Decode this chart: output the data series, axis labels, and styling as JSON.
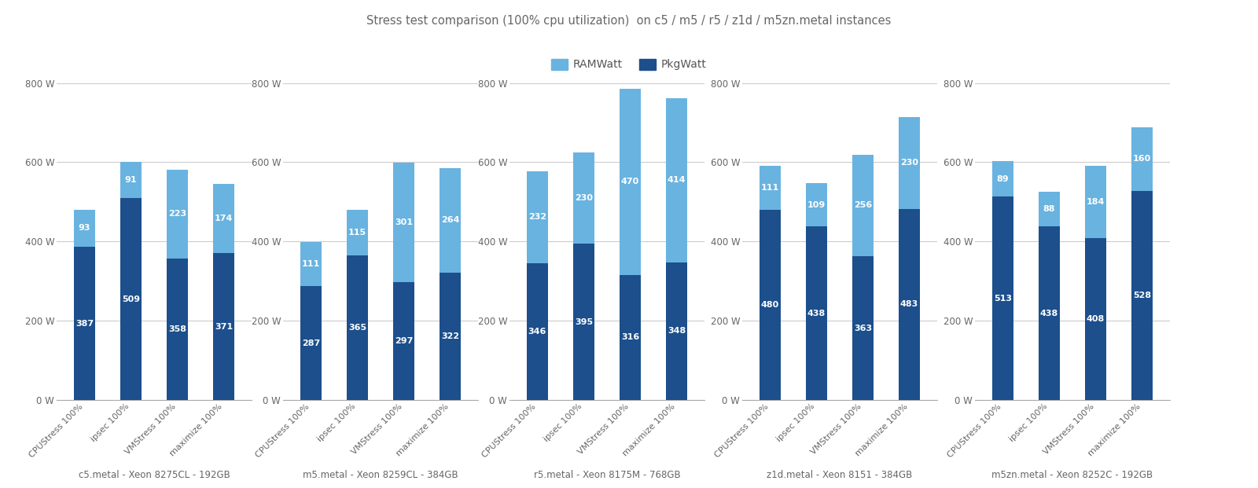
{
  "title": "Stress test comparison (100% cpu utilization)  on c5 / m5 / r5 / z1d / m5zn.metal instances",
  "legend_labels": [
    "RAMWatt",
    "PkgWatt"
  ],
  "ram_color": "#69b3e0",
  "pkg_color": "#1c4f8c",
  "background_color": "#ffffff",
  "ylim": [
    0,
    800
  ],
  "yticks": [
    0,
    200,
    400,
    600,
    800
  ],
  "ytick_labels": [
    "0 W",
    "200 W",
    "400 W",
    "600 W",
    "800 W"
  ],
  "categories": [
    "CPUStress 100%",
    "ipsec 100%",
    "VMStress 100%",
    "maximize 100%"
  ],
  "subplots": [
    {
      "xlabel": "c5.metal - Xeon 8275CL - 192GB",
      "pkg_values": [
        387,
        509,
        358,
        371
      ],
      "ram_values": [
        93,
        91,
        223,
        174
      ]
    },
    {
      "xlabel": "m5.metal - Xeon 8259CL - 384GB",
      "pkg_values": [
        287,
        365,
        297,
        322
      ],
      "ram_values": [
        111,
        115,
        301,
        264
      ]
    },
    {
      "xlabel": "r5.metal - Xeon 8175M - 768GB",
      "pkg_values": [
        346,
        395,
        316,
        348
      ],
      "ram_values": [
        232,
        230,
        470,
        414
      ]
    },
    {
      "xlabel": "z1d.metal - Xeon 8151 - 384GB",
      "pkg_values": [
        480,
        438,
        363,
        483
      ],
      "ram_values": [
        111,
        109,
        256,
        230
      ]
    },
    {
      "xlabel": "m5zn.metal - Xeon 8252C - 192GB",
      "pkg_values": [
        513,
        438,
        408,
        528
      ],
      "ram_values": [
        89,
        88,
        184,
        160
      ]
    }
  ]
}
